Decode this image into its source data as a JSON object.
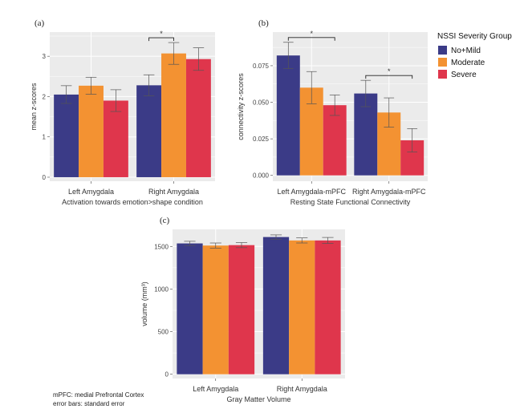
{
  "chart_data": [
    {
      "panel": "(a)",
      "type": "bar",
      "categories": [
        "Left Amygdala",
        "Right Amygdala"
      ],
      "xlabel": "Activation towards emotion>shape condition",
      "ylabel": "mean z-scores",
      "ylim": [
        -0.1,
        3.6
      ],
      "yticks": [
        0,
        1,
        2,
        3
      ],
      "ytick_labels": [
        "0",
        "1",
        "2",
        "3"
      ],
      "series": [
        {
          "name": "No+Mild",
          "values": [
            2.05,
            2.28
          ],
          "errors": [
            0.22,
            0.26
          ]
        },
        {
          "name": "Moderate",
          "values": [
            2.27,
            3.07
          ],
          "errors": [
            0.21,
            0.27
          ]
        },
        {
          "name": "Severe",
          "values": [
            1.9,
            2.93
          ],
          "errors": [
            0.27,
            0.28
          ]
        }
      ],
      "significance": [
        {
          "category_index": 1,
          "from_series": 0,
          "to_series": 1,
          "label": "*"
        }
      ],
      "grid": true
    },
    {
      "panel": "(b)",
      "type": "bar",
      "categories": [
        "Left Amygdala-mPFC",
        "Right Amygdala-mPFC"
      ],
      "xlabel": "Resting State Functional Connectivity",
      "ylabel": "connectivity  z-scores",
      "ylim": [
        -0.004,
        0.098
      ],
      "yticks": [
        0,
        0.025,
        0.05,
        0.075
      ],
      "ytick_labels": [
        "0.000",
        "0.025",
        "0.050",
        "0.075"
      ],
      "series": [
        {
          "name": "No+Mild",
          "values": [
            0.082,
            0.056
          ],
          "errors": [
            0.009,
            0.009
          ]
        },
        {
          "name": "Moderate",
          "values": [
            0.06,
            0.043
          ],
          "errors": [
            0.011,
            0.01
          ]
        },
        {
          "name": "Severe",
          "values": [
            0.048,
            0.024
          ],
          "errors": [
            0.007,
            0.008
          ]
        }
      ],
      "significance": [
        {
          "category_index": 0,
          "from_series": 0,
          "to_series": 2,
          "label": "*"
        },
        {
          "category_index": 1,
          "from_series": 0,
          "to_series": 2,
          "label": "*"
        }
      ],
      "grid": true
    },
    {
      "panel": "(c)",
      "type": "bar",
      "categories": [
        "Left Amygdala",
        "Right Amygdala"
      ],
      "xlabel": "Gray Matter Volume",
      "ylabel": "volume (mm³)",
      "ylim": [
        -50,
        1700
      ],
      "yticks": [
        0,
        500,
        1000,
        1500
      ],
      "ytick_labels": [
        "0",
        "500",
        "1000",
        "1500"
      ],
      "series": [
        {
          "name": "No+Mild",
          "values": [
            1535,
            1610
          ],
          "errors": [
            25,
            25
          ]
        },
        {
          "name": "Moderate",
          "values": [
            1510,
            1570
          ],
          "errors": [
            30,
            30
          ]
        },
        {
          "name": "Severe",
          "values": [
            1515,
            1570
          ],
          "errors": [
            30,
            35
          ]
        }
      ],
      "significance": [],
      "grid": true
    }
  ],
  "legend": {
    "title": "NSSI Severity Group",
    "placement": "right",
    "items": [
      {
        "label": "No+Mild",
        "color": "#3b3b87"
      },
      {
        "label": "Moderate",
        "color": "#f39232"
      },
      {
        "label": "Severe",
        "color": "#df364c"
      }
    ]
  },
  "colors": {
    "panel_background": "#ebebeb",
    "gridline": "#ffffff",
    "error_bar": "#555555"
  },
  "footnotes": [
    "mPFC: medial Prefrontal Cortex",
    "error bars: standard error"
  ]
}
